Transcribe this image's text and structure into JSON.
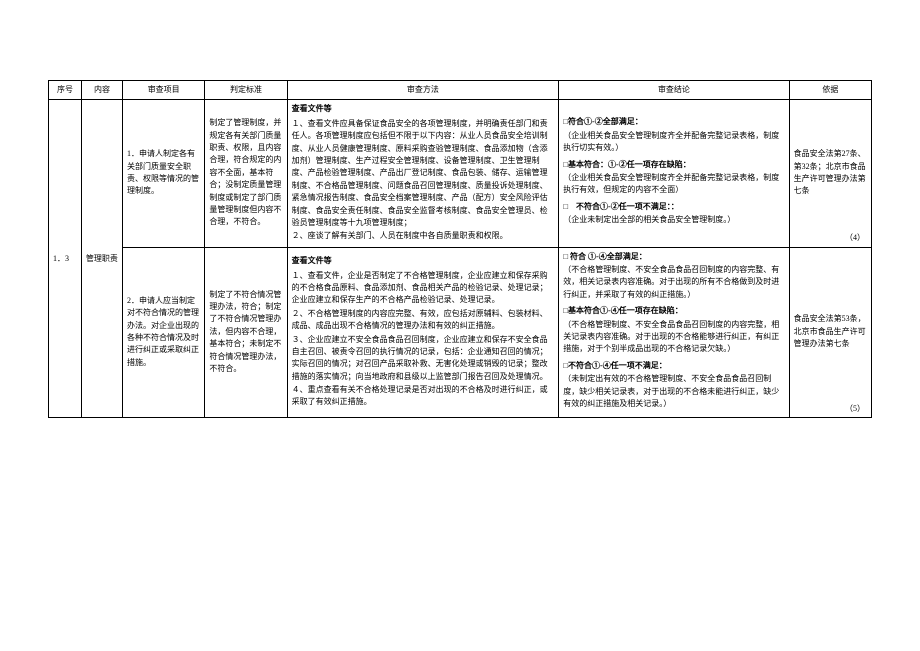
{
  "headers": {
    "xuhao": "序号",
    "neirong": "内容",
    "xiangmu": "审查项目",
    "biaozhun": "判定标准",
    "fangfa": "审查方法",
    "jielun": "审查结论",
    "yiju": "依据"
  },
  "row_seq": "1．3",
  "row_content": "管理职责",
  "r1": {
    "item": "1．申请人制定各有关部门质量安全职责、权限等情况的管理制度。",
    "std": "制定了管理制度，并规定各有关部门质量职责、权限，且内容合理，符合规定的内容不全面，基本符合；没制定质量管理制度或制定了部门质量管理制度但内容不合理，不符合。",
    "method_title": "查看文件等",
    "method_body": [
      "１、查看文件应具备保证食品安全的各项管理制度，并明确责任部门和责任人。各项管理制度应包括但不限于以下内容：从业人员食品安全培训制度、从业人员健康管理制度、原料采购查验管理制度、食品添加物（含添加剂）管理制度、生产过程安全管理制度、设备管理制度、卫生管理制度、产品检验管理制度、产品出厂登记制度、食品包装、储存、运输管理制度、不合格品管理制度、问题食品召回管理制度、质量投诉处理制度、紧急情况报告制度、食品安全档案管理制度、产品（配方）安全风险评估制度、食品安全责任制度、食品安全监督考核制度、食品安全管理员、检验员管理制度等十九项管理制度；",
      "２、座谈了解有关部门、人员在制度中各自质量职责和权限。"
    ],
    "conc_a_head": "□符合①-②全部满足：",
    "conc_a_body": "（企业相关食品安全管理制度齐全并配备完整记录表格，制度执行切实有效。）",
    "conc_b_head": "□基本符合：①-②任一项存在缺陷：",
    "conc_b_body": "（企业相关食品安全管理制度齐全并配备完整记录表格，制度执行有效，但规定的内容不全面）",
    "conc_c_head": "□　不符合①-②任一项不满足：：",
    "conc_c_body": "（企业未制定出全部的相关食品安全管理制度。）",
    "basis": "食品安全法第27条、第32条；北京市食品生产许可管理办法第七条",
    "footnote": "（4）"
  },
  "r2": {
    "item": "2．申请人应当制定对不符合情况的管理办法。对企业出现的各种不符合情况及时进行纠正或采取纠正措施。",
    "std": "制定了不符合情况管理办法，符合；制定了不符合情况管理办法，但内容不合理，基本符合；未制定不符合情况管理办法，不符合。",
    "method_title": "查看文件等",
    "method_body": [
      "１、查看文件，企业是否制定了不合格管理制度，企业应建立和保存采购的不合格食品原料、食品添加剂、食品相关产品的检验记录、处理记录；企业应建立和保存生产的不合格产品检验记录、处理记录。",
      "２、不合格管理制度的内容应完整、有效，应包括对原辅料、包装材料、成品、成品出现不合格情况的管理办法和有效的纠正措施。",
      "３、企业应建立不安全食品食品召回制度，企业应建立和保存不安全食品自主召回、被责令召回的执行情况的记录，包括：企业通知召回的情况；实际召回的情况；对召回产品采取补救、无害化处理或销毁的记录；整改措施的落实情况；向当地政府和县级以上监管部门报告召回及处理情况。",
      "４、重点查看有关不合格处理记录是否对出现的不合格及时进行纠正，或采取了有效纠正措施。"
    ],
    "conc_a_head": "□ 符合 ①-④全部满足：",
    "conc_a_body": "（不合格管理制度、不安全食品食品召回制度的内容完整、有效，相关记录表内容准确。对于出现的所有不合格做到及时进行纠正，并采取了有效的纠正措施。）",
    "conc_b_head": "□基本符合①-④任一项存在缺陷：",
    "conc_b_body": "（不合格管理制度、不安全食品食品召回制度的内容完整，相关记录表内容准确。对于出现的不合格能够进行纠正，有纠正措施，对于个别半成品出现的不合格记录欠缺。）",
    "conc_c_head": "□不符合①-④任一项不满足：",
    "conc_c_body": "（未制定出有效的不合格管理制度、不安全食品食品召回制度，缺少相关记录表，对于出现的不合格未能进行纠正，缺少有效的纠正措施及相关记录。）",
    "basis": "食品安全法第53条，北京市食品生产许可管理办法第七条",
    "footnote": "（5）"
  }
}
